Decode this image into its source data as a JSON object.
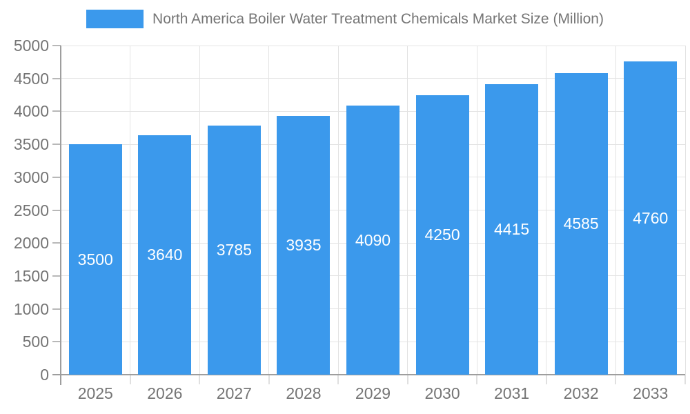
{
  "legend": {
    "label": "North America Boiler Water Treatment Chemicals Market Size (Million)"
  },
  "chart_data": {
    "type": "bar",
    "title": "North America Boiler Water Treatment Chemicals Market Size (Million)",
    "categories": [
      "2025",
      "2026",
      "2027",
      "2028",
      "2029",
      "2030",
      "2031",
      "2032",
      "2033"
    ],
    "values": [
      3500,
      3640,
      3785,
      3935,
      4090,
      4250,
      4415,
      4585,
      4760
    ],
    "xlabel": "",
    "ylabel": "",
    "ylim": [
      0,
      5000
    ],
    "ytick_step": 500,
    "grid": true,
    "legend_position": "top",
    "value_label_position": "inside-center"
  },
  "colors": {
    "bar": "#3B99EC",
    "grid": "#E3E3E3",
    "axis": "#9E9E9E",
    "y_tick": "#B8B8B8",
    "x_tick": "#E0E0E0",
    "text": "#757575",
    "value_label": "#FFFFFF",
    "background": "#FFFFFF"
  }
}
